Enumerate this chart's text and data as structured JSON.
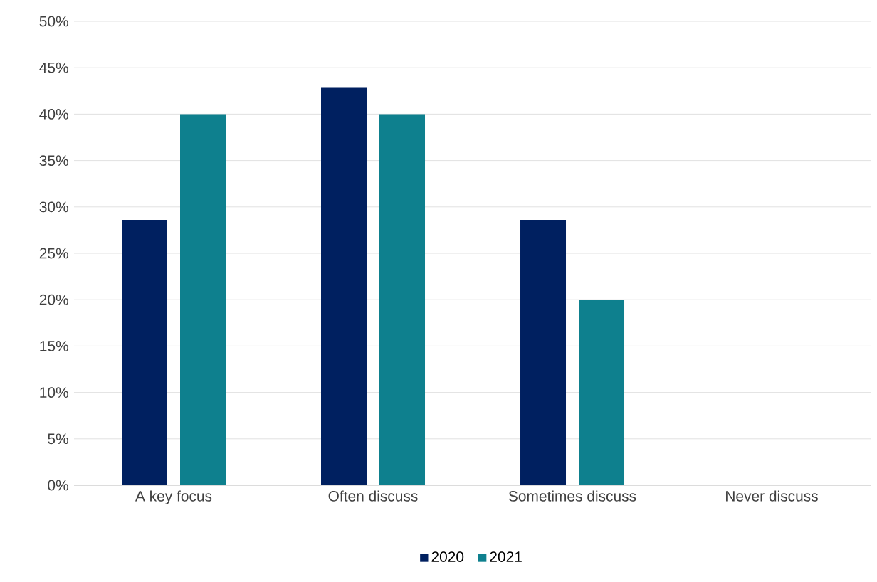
{
  "chart_data": {
    "type": "bar",
    "categories": [
      "A key focus",
      "Often discuss",
      "Sometimes discuss",
      "Never discuss"
    ],
    "series": [
      {
        "name": "2020",
        "color": "#002060",
        "values": [
          28.6,
          42.9,
          28.6,
          0
        ]
      },
      {
        "name": "2021",
        "color": "#0e808e",
        "values": [
          40,
          40,
          20,
          0
        ]
      }
    ],
    "ylim": [
      0,
      50
    ],
    "yticks": [
      {
        "value": 0,
        "label": "0%"
      },
      {
        "value": 5,
        "label": "5%"
      },
      {
        "value": 10,
        "label": "10%"
      },
      {
        "value": 15,
        "label": "15%"
      },
      {
        "value": 20,
        "label": "20%"
      },
      {
        "value": 25,
        "label": "25%"
      },
      {
        "value": 30,
        "label": "30%"
      },
      {
        "value": 35,
        "label": "35%"
      },
      {
        "value": 40,
        "label": "40%"
      },
      {
        "value": 45,
        "label": "45%"
      },
      {
        "value": 50,
        "label": "50%"
      }
    ],
    "grid": "y",
    "legend": "bottom"
  }
}
